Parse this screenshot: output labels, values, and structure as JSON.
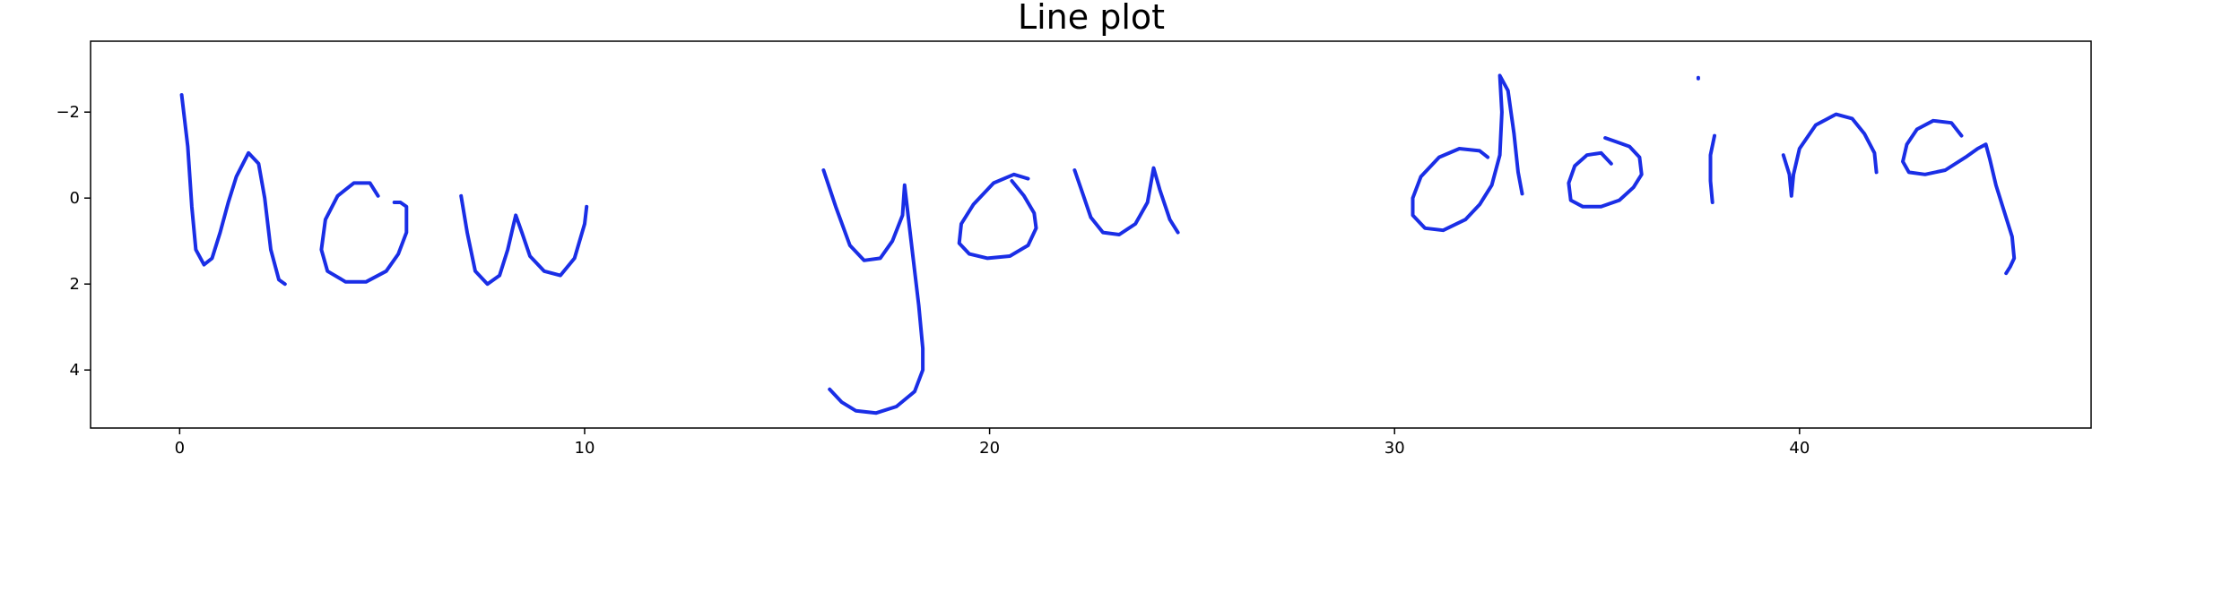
{
  "chart_data": {
    "type": "line",
    "title": "Line plot",
    "xlabel": "",
    "ylabel": "",
    "xlim": [
      -2.2,
      47.2
    ],
    "ylim": [
      5.35,
      -3.65
    ],
    "y_inverted": true,
    "grid": false,
    "line_color": "#1a2ee6",
    "xticks": [
      0,
      10,
      20,
      30,
      40
    ],
    "yticks": [
      -2,
      0,
      2,
      4
    ],
    "xtick_labels": [
      "0",
      "10",
      "20",
      "30",
      "40"
    ],
    "ytick_labels": [
      "−2",
      "0",
      "2",
      "4"
    ],
    "strokes": [
      [
        [
          0.05,
          -2.4
        ],
        [
          0.2,
          -1.2
        ],
        [
          0.3,
          0.2
        ],
        [
          0.4,
          1.2
        ],
        [
          0.6,
          1.55
        ],
        [
          0.8,
          1.4
        ],
        [
          1.0,
          0.8
        ],
        [
          1.2,
          0.1
        ],
        [
          1.4,
          -0.5
        ],
        [
          1.7,
          -1.05
        ],
        [
          1.95,
          -0.8
        ],
        [
          2.1,
          0
        ],
        [
          2.25,
          1.2
        ],
        [
          2.45,
          1.9
        ],
        [
          2.6,
          2.0
        ]
      ],
      [
        [
          4.9,
          -0.05
        ],
        [
          4.7,
          -0.35
        ],
        [
          4.3,
          -0.35
        ],
        [
          3.9,
          -0.05
        ],
        [
          3.6,
          0.5
        ],
        [
          3.5,
          1.2
        ],
        [
          3.65,
          1.7
        ],
        [
          4.1,
          1.95
        ],
        [
          4.6,
          1.95
        ],
        [
          5.1,
          1.7
        ],
        [
          5.4,
          1.3
        ],
        [
          5.6,
          0.8
        ],
        [
          5.6,
          0.2
        ],
        [
          5.45,
          0.1
        ],
        [
          5.3,
          0.1
        ]
      ],
      [
        [
          6.95,
          -0.05
        ],
        [
          7.1,
          0.8
        ],
        [
          7.3,
          1.7
        ],
        [
          7.6,
          2.0
        ],
        [
          7.9,
          1.8
        ],
        [
          8.1,
          1.2
        ],
        [
          8.25,
          0.6
        ],
        [
          8.3,
          0.4
        ],
        [
          8.45,
          0.8
        ],
        [
          8.65,
          1.35
        ],
        [
          9.0,
          1.7
        ],
        [
          9.4,
          1.8
        ],
        [
          9.75,
          1.4
        ],
        [
          10.0,
          0.6
        ],
        [
          10.05,
          0.2
        ]
      ],
      [
        [
          15.9,
          -0.65
        ],
        [
          16.2,
          0.2
        ],
        [
          16.55,
          1.1
        ],
        [
          16.9,
          1.45
        ],
        [
          17.3,
          1.4
        ],
        [
          17.6,
          1.0
        ],
        [
          17.85,
          0.4
        ],
        [
          17.9,
          -0.3
        ],
        [
          18.05,
          0.9
        ],
        [
          18.25,
          2.5
        ],
        [
          18.35,
          3.5
        ],
        [
          18.35,
          4.0
        ],
        [
          18.15,
          4.5
        ],
        [
          17.7,
          4.85
        ],
        [
          17.2,
          5.0
        ],
        [
          16.7,
          4.95
        ],
        [
          16.35,
          4.75
        ],
        [
          16.05,
          4.45
        ]
      ],
      [
        [
          20.95,
          -0.45
        ],
        [
          20.6,
          -0.55
        ],
        [
          20.1,
          -0.35
        ],
        [
          19.6,
          0.15
        ],
        [
          19.3,
          0.6
        ],
        [
          19.25,
          1.05
        ],
        [
          19.5,
          1.3
        ],
        [
          19.95,
          1.4
        ],
        [
          20.5,
          1.35
        ],
        [
          20.95,
          1.1
        ],
        [
          21.15,
          0.7
        ],
        [
          21.1,
          0.35
        ],
        [
          20.85,
          -0.05
        ],
        [
          20.55,
          -0.4
        ]
      ],
      [
        [
          22.1,
          -0.65
        ],
        [
          22.3,
          -0.1
        ],
        [
          22.5,
          0.45
        ],
        [
          22.8,
          0.8
        ],
        [
          23.2,
          0.85
        ],
        [
          23.6,
          0.6
        ],
        [
          23.9,
          0.1
        ],
        [
          24.05,
          -0.7
        ],
        [
          24.2,
          -0.2
        ],
        [
          24.45,
          0.5
        ],
        [
          24.65,
          0.8
        ]
      ],
      [
        [
          32.3,
          -0.95
        ],
        [
          32.1,
          -1.1
        ],
        [
          31.6,
          -1.15
        ],
        [
          31.1,
          -0.95
        ],
        [
          30.65,
          -0.5
        ],
        [
          30.45,
          0
        ],
        [
          30.45,
          0.4
        ],
        [
          30.75,
          0.7
        ],
        [
          31.2,
          0.75
        ],
        [
          31.75,
          0.5
        ],
        [
          32.1,
          0.15
        ],
        [
          32.4,
          -0.3
        ],
        [
          32.6,
          -1.0
        ],
        [
          32.65,
          -2.0
        ],
        [
          32.6,
          -2.85
        ],
        [
          32.8,
          -2.5
        ],
        [
          32.95,
          -1.5
        ],
        [
          33.05,
          -0.6
        ],
        [
          33.15,
          -0.1
        ]
      ],
      [
        [
          35.35,
          -0.8
        ],
        [
          35.1,
          -1.05
        ],
        [
          34.75,
          -1.0
        ],
        [
          34.45,
          -0.75
        ],
        [
          34.3,
          -0.35
        ],
        [
          34.35,
          0.05
        ],
        [
          34.65,
          0.2
        ],
        [
          35.1,
          0.2
        ],
        [
          35.55,
          0.05
        ],
        [
          35.9,
          -0.25
        ],
        [
          36.1,
          -0.55
        ],
        [
          36.05,
          -0.95
        ],
        [
          35.8,
          -1.2
        ],
        [
          35.5,
          -1.3
        ],
        [
          35.2,
          -1.4
        ]
      ],
      [
        [
          37.5,
          -2.8
        ],
        [
          37.5,
          -2.78
        ]
      ],
      [
        [
          37.9,
          -1.45
        ],
        [
          37.8,
          -1.0
        ],
        [
          37.8,
          -0.4
        ],
        [
          37.85,
          0.1
        ]
      ],
      [
        [
          39.6,
          -1.0
        ],
        [
          39.75,
          -0.55
        ],
        [
          39.8,
          -0.05
        ],
        [
          39.85,
          -0.55
        ],
        [
          40.0,
          -1.15
        ],
        [
          40.4,
          -1.7
        ],
        [
          40.9,
          -1.95
        ],
        [
          41.3,
          -1.85
        ],
        [
          41.6,
          -1.5
        ],
        [
          41.85,
          -1.05
        ],
        [
          41.9,
          -0.6
        ]
      ],
      [
        [
          44.0,
          -1.45
        ],
        [
          43.75,
          -1.75
        ],
        [
          43.3,
          -1.8
        ],
        [
          42.9,
          -1.6
        ],
        [
          42.65,
          -1.25
        ],
        [
          42.55,
          -0.85
        ],
        [
          42.7,
          -0.6
        ],
        [
          43.1,
          -0.55
        ],
        [
          43.6,
          -0.65
        ],
        [
          44.1,
          -0.95
        ],
        [
          44.4,
          -1.15
        ],
        [
          44.6,
          -1.25
        ],
        [
          44.7,
          -0.9
        ],
        [
          44.85,
          -0.3
        ],
        [
          45.05,
          0.3
        ],
        [
          45.25,
          0.9
        ],
        [
          45.3,
          1.4
        ],
        [
          45.2,
          1.6
        ],
        [
          45.1,
          1.75
        ]
      ]
    ]
  }
}
